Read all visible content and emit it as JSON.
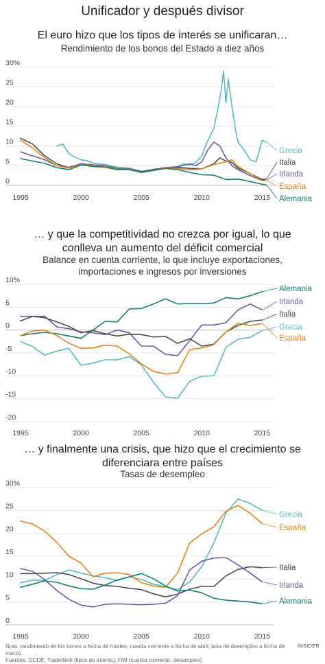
{
  "page": {
    "title": "Unificador y después divisor",
    "footer": [
      "Nota: rendimiento de los bonos a fecha de martes; cuenta corriente a fecha de abril; tasa de desempleo a fecha de marzo",
      "Fuentes: OCDE, TradeWeb (tipos de interés); FMI (cuenta corriente, desempleo)"
    ],
    "brand": "INSIDER"
  },
  "colors": {
    "Grecia": "#5ab8c4",
    "Italia": "#4a4a4a",
    "Irlanda": "#6a5a9e",
    "España": "#e0851f",
    "Alemania": "#167a74"
  },
  "chart_data": [
    {
      "type": "line",
      "title": "El euro hizo que los tipos de interés se unificaran…",
      "subtitle": "Rendimiento de los bonos del Estado a diez años",
      "y_tick_labels": [
        "30%",
        "25",
        "20",
        "15",
        "10",
        "5",
        "0"
      ],
      "x_tick_labels": [
        "1995",
        "2000",
        "2005",
        "2010",
        "2015"
      ],
      "xlim": [
        1995,
        2016
      ],
      "ylim": [
        0,
        30
      ],
      "grid": true,
      "legend": "right, next to line ends",
      "series": [
        {
          "name": "Grecia",
          "x": [
            1998.0,
            1998.5,
            1999.0,
            1999.5,
            2000.0,
            2000.5,
            2001.0,
            2002.0,
            2003.0,
            2004.0,
            2005.0,
            2006.0,
            2007.0,
            2008.0,
            2008.5,
            2009.0,
            2009.5,
            2010.0,
            2010.3,
            2010.6,
            2011.0,
            2011.3,
            2011.6,
            2011.8,
            2012.0,
            2012.2,
            2012.5,
            2012.8,
            2013.0,
            2013.5,
            2014.0,
            2014.5,
            2015.0,
            2015.3
          ],
          "values": [
            10.0,
            10.5,
            8.0,
            7.2,
            6.5,
            6.3,
            5.6,
            5.3,
            4.6,
            4.4,
            3.6,
            4.1,
            4.5,
            4.8,
            5.5,
            5.2,
            5.8,
            7.5,
            10.0,
            12.0,
            14.5,
            19.0,
            24.0,
            29.0,
            21.0,
            27.0,
            20.0,
            14.0,
            11.0,
            9.0,
            6.5,
            6.0,
            11.5,
            11.0
          ]
        },
        {
          "name": "Italia",
          "x": [
            1995.0,
            1996.0,
            1997.0,
            1998.0,
            1999.0,
            2000.0,
            2001.0,
            2002.0,
            2003.0,
            2004.0,
            2005.0,
            2006.0,
            2007.0,
            2008.0,
            2009.0,
            2010.0,
            2011.0,
            2011.5,
            2012.0,
            2012.5,
            2013.0,
            2014.0,
            2015.0,
            2015.3
          ],
          "values": [
            12.0,
            10.5,
            7.5,
            5.5,
            4.5,
            5.5,
            5.2,
            5.0,
            4.3,
            4.2,
            3.5,
            4.0,
            4.5,
            4.6,
            4.3,
            4.2,
            5.5,
            7.0,
            6.2,
            5.8,
            4.4,
            3.0,
            1.5,
            1.6
          ]
        },
        {
          "name": "Irlanda",
          "x": [
            1995.0,
            1996.0,
            1997.0,
            1998.0,
            1999.0,
            2000.0,
            2001.0,
            2002.0,
            2003.0,
            2004.0,
            2005.0,
            2006.0,
            2007.0,
            2008.0,
            2009.0,
            2009.5,
            2010.0,
            2010.5,
            2011.0,
            2011.5,
            2012.0,
            2012.5,
            2013.0,
            2014.0,
            2015.0,
            2015.3
          ],
          "values": [
            8.5,
            7.5,
            6.5,
            5.0,
            4.6,
            5.5,
            5.2,
            5.0,
            4.2,
            4.2,
            3.4,
            3.9,
            4.5,
            4.7,
            5.5,
            5.0,
            6.0,
            9.0,
            11.0,
            10.0,
            7.0,
            5.0,
            4.0,
            2.5,
            1.2,
            1.3
          ]
        },
        {
          "name": "España",
          "x": [
            1995.0,
            1996.0,
            1997.0,
            1998.0,
            1999.0,
            2000.0,
            2001.0,
            2002.0,
            2003.0,
            2004.0,
            2005.0,
            2006.0,
            2007.0,
            2008.0,
            2009.0,
            2010.0,
            2011.0,
            2012.0,
            2012.5,
            2013.0,
            2014.0,
            2015.0,
            2015.3
          ],
          "values": [
            11.5,
            9.5,
            7.0,
            5.0,
            4.4,
            5.3,
            5.0,
            4.8,
            4.1,
            4.1,
            3.3,
            3.8,
            4.4,
            4.3,
            3.9,
            4.2,
            5.3,
            6.0,
            6.5,
            4.8,
            3.0,
            1.2,
            1.3
          ]
        },
        {
          "name": "Alemania",
          "x": [
            1995.0,
            1996.0,
            1997.0,
            1998.0,
            1999.0,
            2000.0,
            2001.0,
            2002.0,
            2003.0,
            2004.0,
            2005.0,
            2006.0,
            2007.0,
            2008.0,
            2009.0,
            2010.0,
            2011.0,
            2012.0,
            2013.0,
            2014.0,
            2015.0,
            2015.3
          ],
          "values": [
            6.8,
            6.2,
            5.6,
            4.5,
            4.0,
            5.2,
            4.8,
            4.6,
            4.0,
            4.0,
            3.3,
            3.8,
            4.3,
            4.0,
            3.3,
            2.7,
            2.6,
            1.5,
            1.6,
            1.0,
            0.3,
            0.2
          ]
        }
      ]
    },
    {
      "type": "line",
      "title": "… y que la competitividad no crezca por igual, lo que conlleva un aumento del déficit comercial",
      "subtitle": "Balance en cuenta corriente, lo que incluye exportaciones, importaciones e ingresos por inversiones",
      "y_tick_labels": [
        "10%",
        "5",
        "0",
        "-5",
        "-10",
        "-15",
        "-20"
      ],
      "x_tick_labels": [
        "1995",
        "2000",
        "2005",
        "2010",
        "2015"
      ],
      "xlim": [
        1995,
        2016
      ],
      "ylim": [
        -20,
        10
      ],
      "grid": true,
      "legend": "right, next to line ends",
      "series": [
        {
          "name": "Alemania",
          "x": [
            1995,
            1996,
            1997,
            1998,
            1999,
            2000,
            2001,
            2002,
            2003,
            2004,
            2005,
            2006,
            2007,
            2008,
            2009,
            2010,
            2011,
            2012,
            2013,
            2014,
            2015
          ],
          "values": [
            -1.2,
            -0.8,
            -0.5,
            -0.8,
            -1.3,
            -1.8,
            0.0,
            1.9,
            1.8,
            4.6,
            4.7,
            5.7,
            6.8,
            5.7,
            5.8,
            5.8,
            5.9,
            7.1,
            6.8,
            7.5,
            8.4
          ]
        },
        {
          "name": "Irlanda",
          "x": [
            1995,
            1996,
            1997,
            1998,
            1999,
            2000,
            2001,
            2002,
            2003,
            2004,
            2005,
            2006,
            2007,
            2008,
            2009,
            2010,
            2011,
            2012,
            2013,
            2014,
            2015
          ],
          "values": [
            3.0,
            3.0,
            3.0,
            0.7,
            0.3,
            -0.4,
            -0.6,
            -1.0,
            0.0,
            -0.6,
            -3.5,
            -3.5,
            -5.3,
            -5.6,
            -2.3,
            1.1,
            1.1,
            1.6,
            4.4,
            5.7,
            4.4
          ]
        },
        {
          "name": "Italia",
          "x": [
            1995,
            1996,
            1997,
            1998,
            1999,
            2000,
            2001,
            2002,
            2003,
            2004,
            2005,
            2006,
            2007,
            2008,
            2009,
            2010,
            2011,
            2012,
            2013,
            2014,
            2015
          ],
          "values": [
            2.0,
            3.0,
            2.7,
            1.8,
            0.8,
            -0.6,
            -0.1,
            -0.8,
            -1.3,
            -0.9,
            -1.0,
            -1.5,
            -1.4,
            -2.9,
            -1.9,
            -3.5,
            -3.1,
            -0.4,
            1.0,
            1.9,
            2.2
          ]
        },
        {
          "name": "Grecia",
          "x": [
            1995,
            1996,
            1997,
            1998,
            1999,
            2000,
            2001,
            2002,
            2003,
            2004,
            2005,
            2006,
            2007,
            2008,
            2009,
            2010,
            2011,
            2012,
            2013,
            2014,
            2015
          ],
          "values": [
            -2.5,
            -3.6,
            -5.5,
            -4.6,
            -4.0,
            -7.7,
            -7.2,
            -6.5,
            -6.5,
            -5.8,
            -7.6,
            -11.4,
            -14.6,
            -14.9,
            -11.2,
            -10.1,
            -10.0,
            -3.8,
            -2.0,
            -1.6,
            -0.1
          ]
        },
        {
          "name": "España",
          "x": [
            1995,
            1996,
            1997,
            1998,
            1999,
            2000,
            2001,
            2002,
            2003,
            2004,
            2005,
            2006,
            2007,
            2008,
            2009,
            2010,
            2011,
            2012,
            2013,
            2014,
            2015
          ],
          "values": [
            -1.2,
            -0.2,
            0.0,
            -1.2,
            -2.9,
            -4.0,
            -3.9,
            -3.3,
            -3.5,
            -5.2,
            -7.4,
            -9.0,
            -9.6,
            -9.3,
            -4.3,
            -3.9,
            -3.2,
            -0.4,
            1.5,
            1.0,
            1.4
          ]
        }
      ]
    },
    {
      "type": "line",
      "title": "… y finalmente una crisis, que hizo que el crecimiento se diferenciara entre países",
      "subtitle": "Tasas de desempleo",
      "y_tick_labels": [
        "30%",
        "25",
        "20",
        "15",
        "10",
        "5",
        "0"
      ],
      "x_tick_labels": [
        "1995",
        "2000",
        "2005",
        "2010",
        "2015"
      ],
      "xlim": [
        1995,
        2016
      ],
      "ylim": [
        0,
        30
      ],
      "grid": true,
      "legend": "right, next to line ends",
      "series": [
        {
          "name": "Grecia",
          "x": [
            1995,
            1996,
            1997,
            1998,
            1999,
            2000,
            2001,
            2002,
            2003,
            2004,
            2005,
            2006,
            2007,
            2008,
            2009,
            2010,
            2011,
            2012,
            2013,
            2014,
            2015
          ],
          "values": [
            9.2,
            9.8,
            9.7,
            11.0,
            12.0,
            11.3,
            10.7,
            10.3,
            9.7,
            10.5,
            9.9,
            8.9,
            8.3,
            7.7,
            9.4,
            12.7,
            17.9,
            24.4,
            27.5,
            26.5,
            25.0
          ]
        },
        {
          "name": "España",
          "x": [
            1995,
            1996,
            1997,
            1998,
            1999,
            2000,
            2001,
            2002,
            2003,
            2004,
            2005,
            2006,
            2007,
            2008,
            2009,
            2010,
            2011,
            2012,
            2013,
            2014,
            2015
          ],
          "values": [
            22.7,
            22.0,
            20.5,
            18.0,
            15.0,
            13.5,
            10.5,
            11.3,
            11.4,
            11.0,
            9.2,
            8.5,
            8.2,
            11.3,
            17.9,
            19.9,
            21.4,
            24.8,
            26.1,
            24.4,
            22.1
          ]
        },
        {
          "name": "Italia",
          "x": [
            1995,
            1996,
            1997,
            1998,
            1999,
            2000,
            2001,
            2002,
            2003,
            2004,
            2005,
            2006,
            2007,
            2008,
            2009,
            2010,
            2011,
            2012,
            2013,
            2014,
            2015
          ],
          "values": [
            11.2,
            11.2,
            11.3,
            11.4,
            11.0,
            10.1,
            9.1,
            8.6,
            8.4,
            8.0,
            7.7,
            6.8,
            6.1,
            6.7,
            7.8,
            8.4,
            8.4,
            10.7,
            12.1,
            12.7,
            12.5
          ]
        },
        {
          "name": "Irlanda",
          "x": [
            1995,
            1996,
            1997,
            1998,
            1999,
            2000,
            2001,
            2002,
            2003,
            2004,
            2005,
            2006,
            2007,
            2008,
            2009,
            2010,
            2011,
            2012,
            2013,
            2014,
            2015
          ],
          "values": [
            12.3,
            11.7,
            9.9,
            7.5,
            5.6,
            4.3,
            3.9,
            4.5,
            4.6,
            4.5,
            4.4,
            4.5,
            4.7,
            6.4,
            12.0,
            13.9,
            14.6,
            14.7,
            13.1,
            11.3,
            9.4
          ]
        },
        {
          "name": "Alemania",
          "x": [
            1995,
            1996,
            1997,
            1998,
            1999,
            2000,
            2001,
            2002,
            2003,
            2004,
            2005,
            2006,
            2007,
            2008,
            2009,
            2010,
            2011,
            2012,
            2013,
            2014,
            2015
          ],
          "values": [
            8.2,
            8.9,
            9.6,
            9.3,
            8.5,
            7.9,
            7.8,
            8.7,
            9.8,
            10.5,
            11.2,
            10.1,
            8.5,
            7.4,
            7.6,
            7.0,
            5.8,
            5.4,
            5.2,
            5.0,
            4.6
          ]
        }
      ]
    }
  ]
}
